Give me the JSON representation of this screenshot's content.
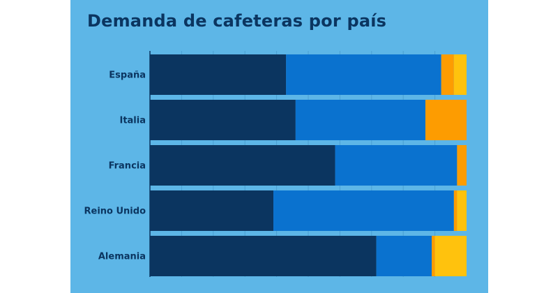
{
  "chart_data": {
    "type": "bar",
    "orientation": "horizontal",
    "stacked": true,
    "title": "Demanda de cafeteras por país",
    "xlabel": "",
    "ylabel": "",
    "xlim": [
      0,
      100
    ],
    "categories": [
      "España",
      "Italia",
      "Francia",
      "Reino Unido",
      "Alemania"
    ],
    "series": [
      {
        "name": "Segmento 1",
        "color": "#0b3560",
        "values": [
          43,
          46,
          58.5,
          39,
          71.5
        ]
      },
      {
        "name": "Segmento 2",
        "color": "#0a72cf",
        "values": [
          49,
          41,
          38.5,
          57,
          17.5
        ]
      },
      {
        "name": "Segmento 3",
        "color": "#fd9c01",
        "values": [
          4,
          13,
          3,
          1,
          1
        ]
      },
      {
        "name": "Segmento 4",
        "color": "#ffc20d",
        "values": [
          4,
          0,
          0,
          3,
          10
        ]
      }
    ],
    "grid": true,
    "legend": "none"
  },
  "colors": {
    "background": "#5db6e7",
    "title": "#0b3560",
    "axis": "#0b3560"
  }
}
